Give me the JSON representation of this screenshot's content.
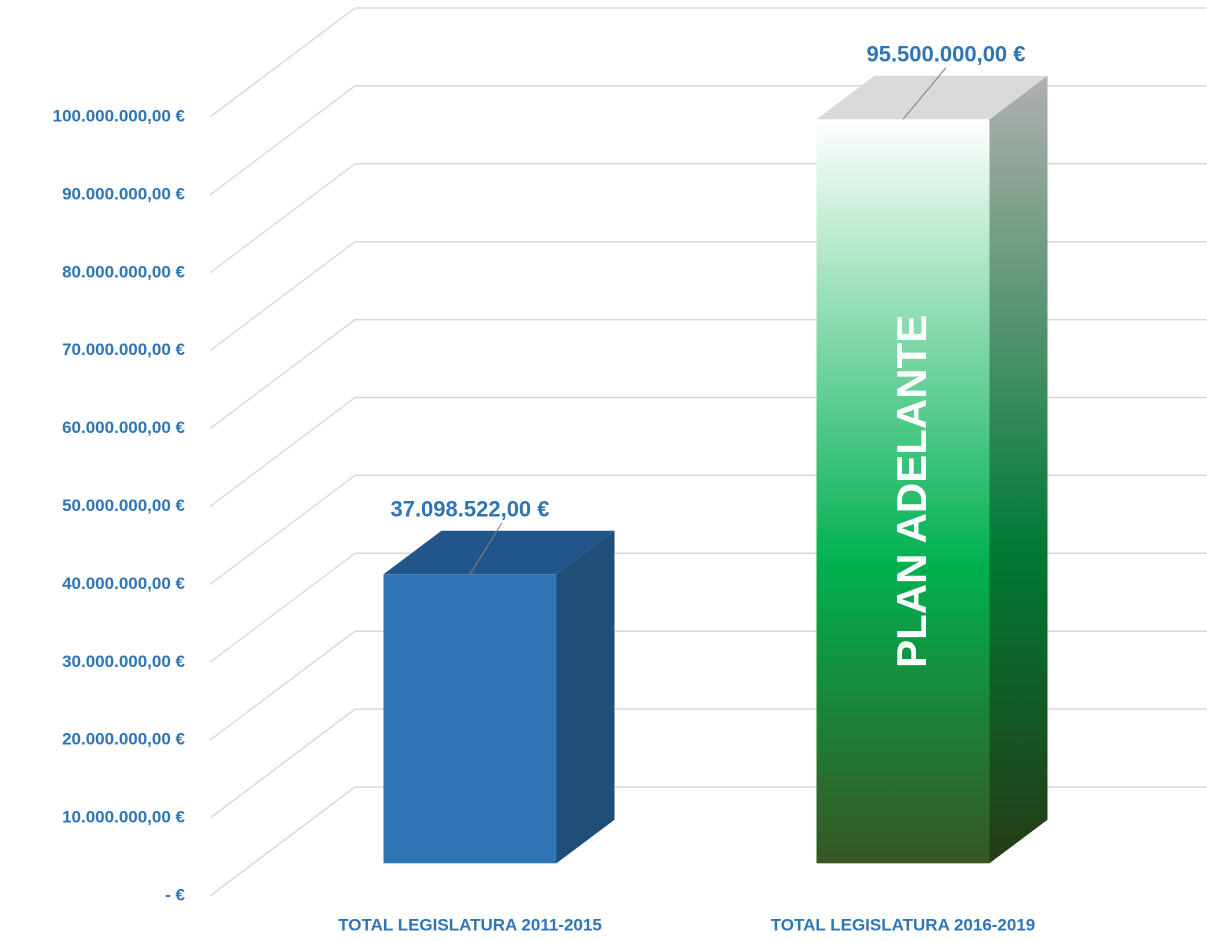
{
  "chart_data": {
    "type": "bar3d",
    "categories": [
      "TOTAL LEGISLATURA 2011-2015",
      "TOTAL LEGISLATURA 2016-2019"
    ],
    "values": [
      37098522,
      95500000
    ],
    "value_labels": [
      "37.098.522,00 €",
      "95.500.000,00 €"
    ],
    "colors": [
      "#2e75b6",
      "#00b050"
    ],
    "gradient": [
      false,
      true
    ],
    "annotation": "PLAN ADELANTE",
    "ylim": [
      0,
      100000000
    ],
    "yticks": [
      {
        "value": 0,
        "label": "-   €"
      },
      {
        "value": 10000000,
        "label": "10.000.000,00 €"
      },
      {
        "value": 20000000,
        "label": "20.000.000,00 €"
      },
      {
        "value": 30000000,
        "label": "30.000.000,00 €"
      },
      {
        "value": 40000000,
        "label": "40.000.000,00 €"
      },
      {
        "value": 50000000,
        "label": "50.000.000,00 €"
      },
      {
        "value": 60000000,
        "label": "60.000.000,00 €"
      },
      {
        "value": 70000000,
        "label": "70.000.000,00 €"
      },
      {
        "value": 80000000,
        "label": "80.000.000,00 €"
      },
      {
        "value": 90000000,
        "label": "90.000.000,00 €"
      },
      {
        "value": 100000000,
        "label": "100.000.000,00 €"
      }
    ],
    "grid": true
  }
}
